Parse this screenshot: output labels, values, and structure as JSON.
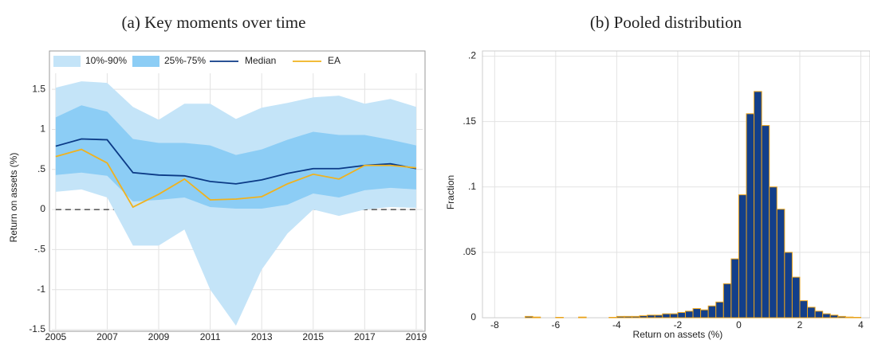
{
  "chart_data": [
    {
      "type": "line",
      "title": "(a) Key moments over time",
      "ylabel": "Return on assets (%)",
      "x": [
        2005,
        2006,
        2007,
        2008,
        2009,
        2010,
        2011,
        2012,
        2013,
        2014,
        2015,
        2016,
        2017,
        2018,
        2019
      ],
      "bands": [
        {
          "name": "10%-90%",
          "color": "#c4e4f8",
          "lower": [
            0.22,
            0.25,
            0.15,
            -0.45,
            -0.45,
            -0.25,
            -1.0,
            -1.45,
            -0.75,
            -0.3,
            0.0,
            -0.08,
            0.0,
            0.03,
            0.02
          ],
          "upper": [
            1.52,
            1.6,
            1.58,
            1.28,
            1.12,
            1.32,
            1.32,
            1.13,
            1.27,
            1.33,
            1.4,
            1.42,
            1.32,
            1.38,
            1.28
          ]
        },
        {
          "name": "25%-75%",
          "color": "#8ccdf5",
          "lower": [
            0.43,
            0.46,
            0.42,
            0.1,
            0.12,
            0.15,
            0.03,
            0.01,
            0.01,
            0.06,
            0.2,
            0.15,
            0.24,
            0.27,
            0.25
          ],
          "upper": [
            1.15,
            1.3,
            1.22,
            0.88,
            0.83,
            0.83,
            0.8,
            0.68,
            0.75,
            0.87,
            0.97,
            0.93,
            0.93,
            0.87,
            0.8
          ]
        }
      ],
      "series": [
        {
          "name": "Median",
          "color": "#0b3a86",
          "values": [
            0.79,
            0.88,
            0.87,
            0.46,
            0.43,
            0.42,
            0.35,
            0.32,
            0.37,
            0.45,
            0.51,
            0.51,
            0.55,
            0.57,
            0.51
          ]
        },
        {
          "name": "EA",
          "color": "#f0b21e",
          "values": [
            0.66,
            0.75,
            0.58,
            0.03,
            0.19,
            0.38,
            0.12,
            0.13,
            0.16,
            0.32,
            0.44,
            0.38,
            0.55,
            0.55,
            0.52
          ]
        }
      ],
      "hline": 0,
      "xlim": [
        2004.85,
        2019.25
      ],
      "xticks": [
        2005,
        2007,
        2009,
        2011,
        2013,
        2015,
        2017,
        2019
      ],
      "ylim": [
        -1.5,
        1.7
      ],
      "yticks": [
        -1.5,
        -1,
        {
          "value": -0.5,
          "label": "-.5"
        },
        0,
        {
          "value": 0.5,
          "label": ".5"
        },
        1,
        1.5
      ],
      "grid": true,
      "legend": "top"
    },
    {
      "type": "histogram",
      "title": "(b) Pooled distribution",
      "xlabel": "Return on assets (%)",
      "ylabel": "Fraction",
      "color": "#133f8a",
      "edgecolor": "#e8a21a",
      "bins": [
        -7,
        -6.75,
        -6.5,
        -6.25,
        -6,
        -5.75,
        -5.5,
        -5.25,
        -5,
        -4.75,
        -4.5,
        -4.25,
        -4,
        -3.75,
        -3.5,
        -3.25,
        -3,
        -2.75,
        -2.5,
        -2.25,
        -2,
        -1.75,
        -1.5,
        -1.25,
        -1,
        -0.75,
        -0.5,
        -0.25,
        0,
        0.25,
        0.5,
        0.75,
        1,
        1.25,
        1.5,
        1.75,
        2,
        2.25,
        2.5,
        2.75,
        3,
        3.25,
        3.5,
        3.75,
        4
      ],
      "values": [
        0.001,
        0.0005,
        0,
        0,
        0.0003,
        0,
        0,
        0.0005,
        0,
        0,
        0,
        0.0003,
        0.001,
        0.001,
        0.001,
        0.0015,
        0.002,
        0.002,
        0.003,
        0.003,
        0.004,
        0.005,
        0.007,
        0.006,
        0.009,
        0.012,
        0.026,
        0.045,
        0.094,
        0.156,
        0.173,
        0.147,
        0.1,
        0.083,
        0.05,
        0.031,
        0.013,
        0.008,
        0.005,
        0.003,
        0.002,
        0.001,
        0.0005,
        0.0003
      ],
      "xlim": [
        -8.4,
        4.3
      ],
      "xticks": [
        -8,
        -6,
        -4,
        -2,
        0,
        2,
        4
      ],
      "ylim": [
        0,
        0.204
      ],
      "yticks": [
        0,
        {
          "value": 0.05,
          "label": ".05"
        },
        {
          "value": 0.1,
          "label": ".1"
        },
        {
          "value": 0.15,
          "label": ".15"
        },
        {
          "value": 0.2,
          "label": ".2"
        }
      ],
      "grid": true
    }
  ]
}
